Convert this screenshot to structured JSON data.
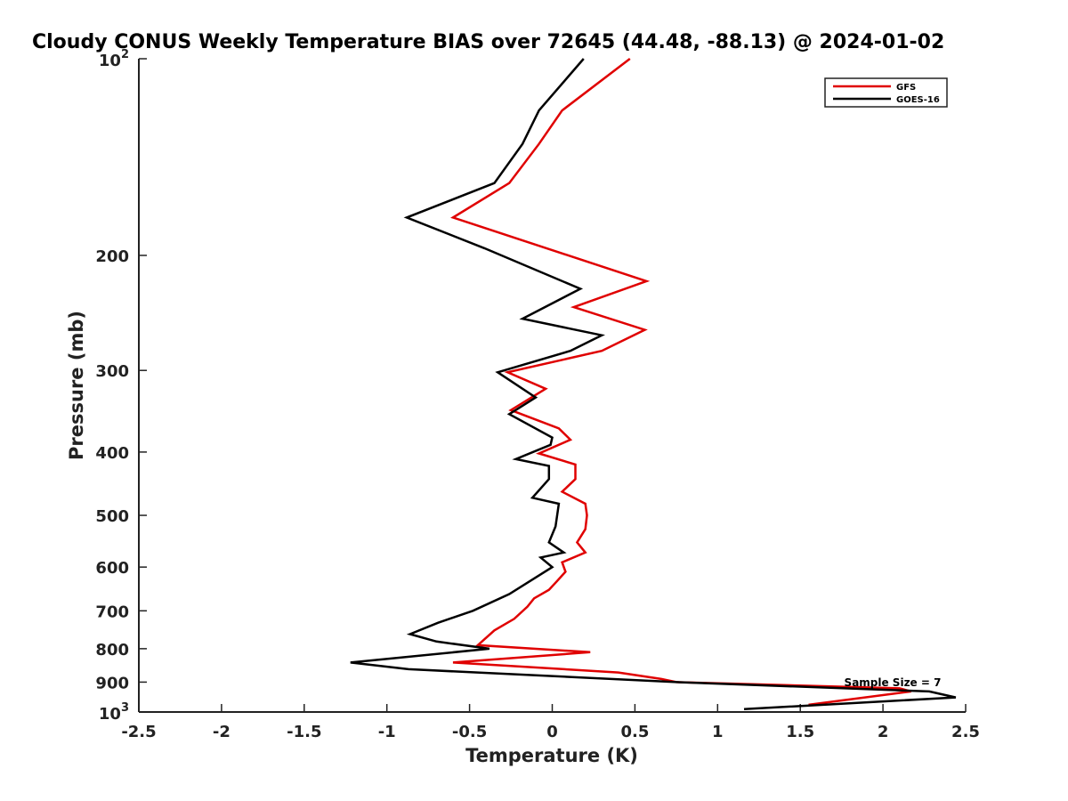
{
  "chart_data": {
    "type": "line",
    "title": "Cloudy CONUS Weekly Temperature BIAS over 72645 (44.48, -88.13) @ 2024-01-02",
    "xlabel": "Temperature (K)",
    "ylabel": "Pressure (mb)",
    "xlim": [
      -2.5,
      2.5
    ],
    "ylim": [
      100,
      1000
    ],
    "y_scale": "log",
    "y_reversed": true,
    "x_ticks": [
      "-2.5",
      "-2",
      "-1.5",
      "-1",
      "-0.5",
      "0",
      "0.5",
      "1",
      "1.5",
      "2",
      "2.5"
    ],
    "y_ticks": [
      {
        "value": 100,
        "base": "10",
        "exp": "2"
      },
      {
        "value": 200,
        "label": "200"
      },
      {
        "value": 300,
        "label": "300"
      },
      {
        "value": 400,
        "label": "400"
      },
      {
        "value": 500,
        "label": "500"
      },
      {
        "value": 600,
        "label": "600"
      },
      {
        "value": 700,
        "label": "700"
      },
      {
        "value": 800,
        "label": "800"
      },
      {
        "value": 900,
        "label": "900"
      },
      {
        "value": 1000,
        "base": "10",
        "exp": "3"
      }
    ],
    "grid": false,
    "legend_position": "top-right",
    "annotation": "Sample Size = 7",
    "series": [
      {
        "name": "GFS",
        "color": "#e00000",
        "x": [
          0.47,
          0.06,
          -0.08,
          -0.26,
          -0.6,
          0.57,
          0.13,
          0.56,
          0.3,
          -0.27,
          -0.04,
          -0.25,
          0.04,
          0.11,
          -0.08,
          0.14,
          0.14,
          0.06,
          0.2,
          0.21,
          0.2,
          0.15,
          0.2,
          0.06,
          0.08,
          0.03,
          -0.02,
          -0.11,
          -0.15,
          -0.23,
          -0.35,
          -0.45,
          0.23,
          -0.6,
          0.4,
          0.66,
          0.75,
          2.1,
          2.17,
          1.55
        ],
        "y": [
          100,
          120,
          135,
          155,
          175,
          219,
          240,
          260,
          280,
          302,
          320,
          345,
          368,
          383,
          402,
          418,
          440,
          460,
          480,
          500,
          525,
          550,
          570,
          590,
          610,
          630,
          650,
          670,
          690,
          720,
          750,
          790,
          810,
          840,
          870,
          890,
          900,
          920,
          930,
          975
        ]
      },
      {
        "name": "GOES-16",
        "color": "#000000",
        "x": [
          0.19,
          -0.08,
          -0.18,
          -0.35,
          -0.88,
          -0.41,
          0.17,
          -0.18,
          0.3,
          0.11,
          -0.33,
          -0.1,
          -0.26,
          0.0,
          -0.01,
          -0.22,
          -0.02,
          -0.02,
          -0.12,
          0.04,
          0.02,
          -0.02,
          0.07,
          -0.07,
          0.0,
          -0.26,
          -0.48,
          -0.69,
          -0.86,
          -0.7,
          -0.38,
          -1.22,
          -0.87,
          0.75,
          2.28,
          2.44,
          1.16
        ],
        "y": [
          100,
          120,
          135,
          155,
          175,
          195,
          225,
          250,
          265,
          280,
          302,
          330,
          350,
          380,
          390,
          410,
          420,
          440,
          470,
          480,
          520,
          550,
          570,
          580,
          600,
          660,
          700,
          730,
          760,
          780,
          800,
          840,
          860,
          900,
          930,
          950,
          990
        ]
      }
    ]
  }
}
